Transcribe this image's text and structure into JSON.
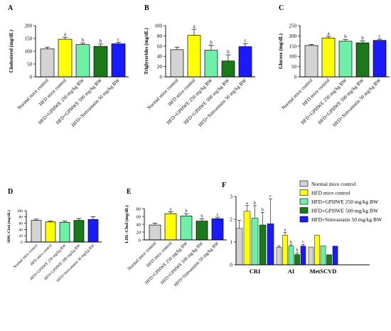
{
  "legend": {
    "entries": [
      "Normal mice control",
      "HFD mice control",
      "HFD+GPHWE 250 mg/kg BW",
      "HFD+GPHWE 500 mg/kg BW",
      "HFD+Simvastatin 50 mg/kg BW"
    ],
    "colors": [
      "#d3d3d3",
      "#ffff00",
      "#6ef0a6",
      "#1a7a1a",
      "#1a1aff"
    ]
  },
  "chart_data": [
    {
      "panel": "A",
      "type": "bar",
      "ylabel": "Cholesterol (mg/dL)",
      "ylim": [
        0,
        200
      ],
      "yticks": [
        0,
        50,
        100,
        150,
        200
      ],
      "categories": [
        "Normal mice control",
        "HFD mice control",
        "HFD+GPHWE 250 mg/kg BW",
        "HFD+GPHWE 500 mg/kg BW",
        "HFD+Simvastatin 50 mg/kg BW"
      ],
      "values": [
        109,
        147,
        126,
        119,
        129
      ],
      "errors": [
        7,
        8,
        6,
        9,
        6
      ],
      "sig": [
        "",
        "a",
        "b",
        "b",
        "c"
      ]
    },
    {
      "panel": "B",
      "type": "bar",
      "ylabel": "Triglycerides (mg/dL)",
      "ylim": [
        0,
        100
      ],
      "yticks": [
        0,
        20,
        40,
        60,
        80,
        100
      ],
      "categories": [
        "Normal mice control",
        "HFD mice control",
        "HFD+GPHWE 250 mg/kg BW",
        "HFD+GPHWE 500 mg/kg BW",
        "HFD+Simvastatin 50 mg/kg BW"
      ],
      "values": [
        53,
        81,
        52,
        31,
        59
      ],
      "errors": [
        5,
        12,
        10,
        12,
        6
      ],
      "sig": [
        "",
        "a",
        "b",
        "b",
        "c"
      ]
    },
    {
      "panel": "C",
      "type": "bar",
      "ylabel": "Glucose (mg/dL)",
      "ylim": [
        0,
        250
      ],
      "yticks": [
        0,
        50,
        100,
        150,
        200,
        250
      ],
      "categories": [
        "Normal mice control",
        "HFD mice control",
        "HFD+GPHWE 250 mg/kg BW",
        "HFD+GPHWE 500 mg/kg BW",
        "HFD+Simvastatin 50 mg/kg BW"
      ],
      "values": [
        153,
        189,
        174,
        166,
        178
      ],
      "errors": [
        5,
        9,
        8,
        9,
        6
      ],
      "sig": [
        "",
        "a",
        "b",
        "b",
        "c"
      ]
    },
    {
      "panel": "D",
      "type": "bar",
      "ylabel": "HDL-Chol (mg/dL)",
      "ylim": [
        0,
        100
      ],
      "yticks": [
        0,
        20,
        40,
        60,
        80,
        100
      ],
      "categories": [
        "Normal mice control",
        "HFD mice control",
        "HFD+GPHWE 250 mg/kg BW",
        "HFD+GPHWE 500 mg/kg BW",
        "HFD+Simvastatin 50 mg/kg BW"
      ],
      "values": [
        69,
        64,
        63,
        69,
        72
      ],
      "errors": [
        4,
        3,
        4,
        6,
        9
      ],
      "sig": [
        "",
        "",
        "",
        "",
        ""
      ]
    },
    {
      "panel": "E",
      "type": "bar",
      "ylabel": "LDL-Chol (mg/dL)",
      "ylim": [
        0,
        80
      ],
      "yticks": [
        0,
        20,
        40,
        60,
        80
      ],
      "categories": [
        "Normal mice control",
        "HFD mice control",
        "HFD+GPHWE 250 mg/kg BW",
        "HFD+GPHWE 500 mg/kg BW",
        "HFD+Simvastatin 50 mg/kg BW"
      ],
      "values": [
        38,
        67,
        61,
        48,
        54
      ],
      "errors": [
        5,
        5,
        6,
        6,
        4
      ],
      "sig": [
        "",
        "a",
        "b",
        "b",
        "c"
      ]
    },
    {
      "panel": "F",
      "type": "bar",
      "ylim": [
        0,
        3
      ],
      "yticks": [
        0,
        1,
        2,
        3
      ],
      "categories": [
        "CRI",
        "AI",
        "MetSCVD"
      ],
      "series": [
        {
          "name": "Normal mice control",
          "values": [
            1.6,
            0.77,
            0.78
          ],
          "errors": [
            0.35,
            0.06,
            0
          ],
          "sig": [
            "",
            "",
            ""
          ]
        },
        {
          "name": "HFD mice control",
          "values": [
            2.35,
            1.3,
            1.3
          ],
          "errors": [
            0.25,
            0.12,
            0
          ],
          "sig": [
            "a",
            "a",
            ""
          ]
        },
        {
          "name": "HFD+GPHWE 250 mg/kg BW",
          "values": [
            2.05,
            0.82,
            0.83
          ],
          "errors": [
            0.55,
            0.06,
            0
          ],
          "sig": [
            "b",
            "b",
            ""
          ]
        },
        {
          "name": "HFD+GPHWE 500 mg/kg BW",
          "values": [
            1.75,
            0.45,
            0.44
          ],
          "errors": [
            0.55,
            0.08,
            0
          ],
          "sig": [
            "b",
            "b",
            ""
          ]
        },
        {
          "name": "HFD+Simvastatin 50 mg/kg BW",
          "values": [
            1.8,
            0.82,
            0.82
          ],
          "errors": [
            1.1,
            0.08,
            0
          ],
          "sig": [
            "c",
            "c",
            ""
          ]
        }
      ]
    }
  ]
}
